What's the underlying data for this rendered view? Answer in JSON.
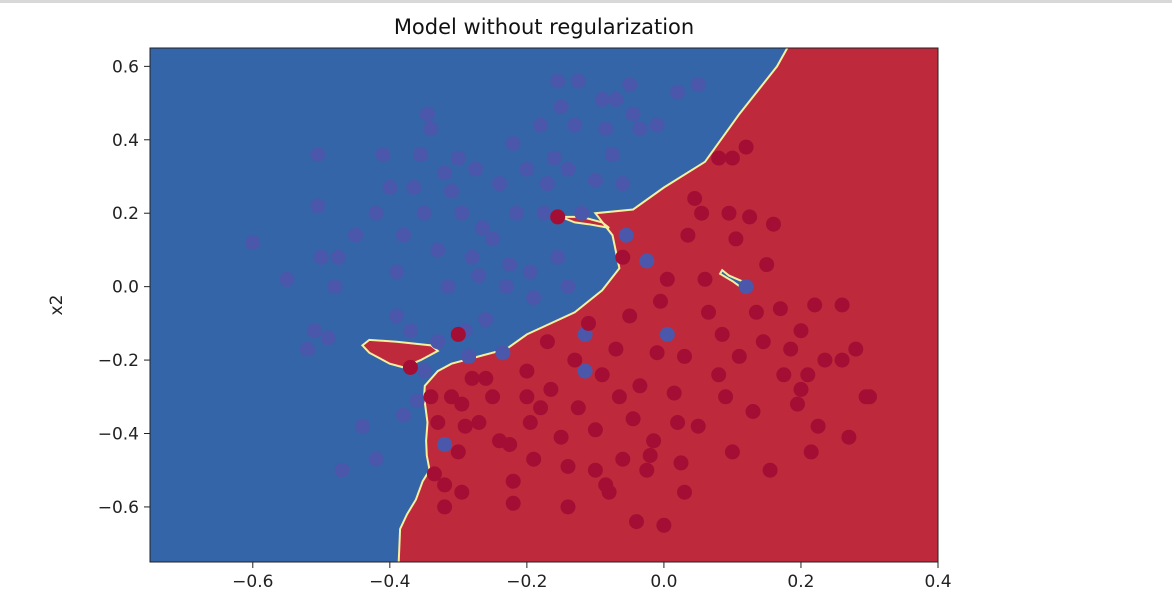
{
  "chart_data": {
    "type": "scatter",
    "title": "Model without regularization",
    "xlabel": "",
    "ylabel": "x2",
    "xlim": [
      -0.75,
      0.4
    ],
    "ylim": [
      -0.75,
      0.65
    ],
    "x_ticks": [
      -0.6,
      -0.4,
      -0.2,
      0.0,
      0.2,
      0.4
    ],
    "x_tick_labels": [
      "−0.6",
      "−0.4",
      "−0.2",
      "0.0",
      "0.2",
      "0.4"
    ],
    "y_ticks": [
      0.6,
      0.4,
      0.2,
      0.0,
      -0.2,
      -0.4,
      -0.6
    ],
    "y_tick_labels": [
      "0.6",
      "0.4",
      "0.2",
      "0.0",
      "−0.2",
      "−0.4",
      "−0.6"
    ],
    "grid": false,
    "colors": {
      "blue_region": "#3465a8",
      "red_region": "#be2a3c",
      "boundary": "#f3f0a0",
      "blue_point": "#4b57ab",
      "red_point": "#a50e34"
    },
    "decision_boundary_main": [
      [
        -0.387,
        -0.75
      ],
      [
        -0.385,
        -0.66
      ],
      [
        -0.375,
        -0.62
      ],
      [
        -0.362,
        -0.58
      ],
      [
        -0.352,
        -0.53
      ],
      [
        -0.342,
        -0.5
      ],
      [
        -0.346,
        -0.46
      ],
      [
        -0.347,
        -0.42
      ],
      [
        -0.345,
        -0.37
      ],
      [
        -0.35,
        -0.3
      ],
      [
        -0.349,
        -0.27
      ],
      [
        -0.33,
        -0.23
      ],
      [
        -0.31,
        -0.21
      ],
      [
        -0.27,
        -0.19
      ],
      [
        -0.23,
        -0.17
      ],
      [
        -0.2,
        -0.13
      ],
      [
        -0.13,
        -0.07
      ],
      [
        -0.09,
        -0.01
      ],
      [
        -0.065,
        0.05
      ],
      [
        -0.075,
        0.14
      ],
      [
        -0.1,
        0.2
      ],
      [
        -0.045,
        0.21
      ],
      [
        0.0,
        0.27
      ],
      [
        0.06,
        0.34
      ],
      [
        0.11,
        0.47
      ],
      [
        0.165,
        0.6
      ],
      [
        0.18,
        0.65
      ]
    ],
    "decision_boundary_islands": [
      [
        [
          -0.44,
          -0.16
        ],
        [
          -0.43,
          -0.145
        ],
        [
          -0.39,
          -0.15
        ],
        [
          -0.34,
          -0.16
        ],
        [
          -0.33,
          -0.175
        ],
        [
          -0.355,
          -0.2
        ],
        [
          -0.38,
          -0.22
        ],
        [
          -0.4,
          -0.21
        ],
        [
          -0.43,
          -0.18
        ]
      ],
      [
        [
          -0.15,
          0.19
        ],
        [
          -0.13,
          0.175
        ],
        [
          -0.11,
          0.17
        ],
        [
          -0.08,
          0.16
        ],
        [
          -0.09,
          0.175
        ],
        [
          -0.12,
          0.19
        ]
      ],
      [
        [
          0.085,
          0.045
        ],
        [
          0.095,
          0.03
        ],
        [
          0.12,
          0.01
        ],
        [
          0.115,
          -0.005
        ],
        [
          0.1,
          0.015
        ],
        [
          0.082,
          0.035
        ]
      ]
    ],
    "series": [
      {
        "label_class": "blue",
        "points": [
          [
            -0.6,
            0.12
          ],
          [
            -0.55,
            0.02
          ],
          [
            -0.52,
            -0.17
          ],
          [
            -0.51,
            -0.12
          ],
          [
            -0.505,
            0.36
          ],
          [
            -0.505,
            0.22
          ],
          [
            -0.5,
            0.08
          ],
          [
            -0.49,
            -0.14
          ],
          [
            -0.48,
            0.0
          ],
          [
            -0.475,
            0.08
          ],
          [
            -0.47,
            -0.5
          ],
          [
            -0.45,
            0.14
          ],
          [
            -0.44,
            -0.38
          ],
          [
            -0.42,
            0.2
          ],
          [
            -0.42,
            -0.47
          ],
          [
            -0.41,
            0.36
          ],
          [
            -0.4,
            0.27
          ],
          [
            -0.39,
            0.04
          ],
          [
            -0.39,
            -0.08
          ],
          [
            -0.38,
            0.14
          ],
          [
            -0.38,
            -0.35
          ],
          [
            -0.37,
            -0.12
          ],
          [
            -0.365,
            0.27
          ],
          [
            -0.36,
            -0.31
          ],
          [
            -0.355,
            0.36
          ],
          [
            -0.35,
            0.2
          ],
          [
            -0.35,
            -0.23
          ],
          [
            -0.345,
            0.47
          ],
          [
            -0.34,
            0.43
          ],
          [
            -0.33,
            0.1
          ],
          [
            -0.33,
            -0.15
          ],
          [
            -0.32,
            0.31
          ],
          [
            -0.315,
            0.0
          ],
          [
            -0.31,
            0.26
          ],
          [
            -0.3,
            0.35
          ],
          [
            -0.295,
            0.2
          ],
          [
            -0.29,
            -0.12
          ],
          [
            -0.285,
            -0.19
          ],
          [
            -0.28,
            0.08
          ],
          [
            -0.275,
            0.32
          ],
          [
            -0.27,
            0.03
          ],
          [
            -0.265,
            0.16
          ],
          [
            -0.26,
            -0.09
          ],
          [
            -0.25,
            0.13
          ],
          [
            -0.24,
            0.28
          ],
          [
            -0.235,
            -0.18
          ],
          [
            -0.23,
            0.0
          ],
          [
            -0.225,
            0.06
          ],
          [
            -0.22,
            0.39
          ],
          [
            -0.215,
            0.2
          ],
          [
            -0.2,
            0.32
          ],
          [
            -0.195,
            0.04
          ],
          [
            -0.19,
            -0.03
          ],
          [
            -0.18,
            0.44
          ],
          [
            -0.175,
            0.2
          ],
          [
            -0.17,
            0.28
          ],
          [
            -0.16,
            0.35
          ],
          [
            -0.155,
            0.56
          ],
          [
            -0.155,
            0.08
          ],
          [
            -0.15,
            0.49
          ],
          [
            -0.14,
            0.32
          ],
          [
            -0.14,
            0.0
          ],
          [
            -0.13,
            0.44
          ],
          [
            -0.125,
            0.56
          ],
          [
            -0.12,
            0.2
          ],
          [
            -0.115,
            -0.13
          ],
          [
            -0.1,
            0.29
          ],
          [
            -0.09,
            0.51
          ],
          [
            -0.085,
            0.43
          ],
          [
            -0.075,
            0.36
          ],
          [
            -0.07,
            0.51
          ],
          [
            -0.06,
            0.28
          ],
          [
            -0.055,
            0.14
          ],
          [
            -0.05,
            0.55
          ],
          [
            -0.045,
            0.47
          ],
          [
            -0.035,
            0.43
          ],
          [
            -0.025,
            0.07
          ],
          [
            -0.01,
            0.44
          ],
          [
            0.005,
            -0.13
          ],
          [
            0.02,
            0.53
          ],
          [
            0.05,
            0.55
          ],
          [
            0.12,
            0.0
          ],
          [
            -0.115,
            -0.23
          ],
          [
            -0.32,
            -0.43
          ]
        ]
      },
      {
        "label_class": "red",
        "points": [
          [
            -0.3,
            -0.13
          ],
          [
            -0.155,
            0.19
          ],
          [
            -0.06,
            0.08
          ],
          [
            -0.37,
            -0.22
          ],
          [
            -0.34,
            -0.3
          ],
          [
            -0.33,
            -0.37
          ],
          [
            -0.31,
            -0.3
          ],
          [
            -0.295,
            -0.32
          ],
          [
            -0.29,
            -0.38
          ],
          [
            -0.3,
            -0.45
          ],
          [
            -0.32,
            -0.54
          ],
          [
            -0.335,
            -0.51
          ],
          [
            -0.32,
            -0.6
          ],
          [
            -0.295,
            -0.56
          ],
          [
            -0.27,
            -0.37
          ],
          [
            -0.26,
            -0.25
          ],
          [
            -0.25,
            -0.3
          ],
          [
            -0.24,
            -0.42
          ],
          [
            -0.225,
            -0.43
          ],
          [
            -0.22,
            -0.53
          ],
          [
            -0.22,
            -0.59
          ],
          [
            -0.2,
            -0.23
          ],
          [
            -0.2,
            -0.3
          ],
          [
            -0.195,
            -0.37
          ],
          [
            -0.19,
            -0.47
          ],
          [
            -0.18,
            -0.33
          ],
          [
            -0.17,
            -0.15
          ],
          [
            -0.165,
            -0.28
          ],
          [
            -0.15,
            -0.41
          ],
          [
            -0.14,
            -0.49
          ],
          [
            -0.14,
            -0.6
          ],
          [
            -0.13,
            -0.2
          ],
          [
            -0.125,
            -0.33
          ],
          [
            -0.11,
            -0.1
          ],
          [
            -0.1,
            -0.39
          ],
          [
            -0.1,
            -0.5
          ],
          [
            -0.09,
            -0.24
          ],
          [
            -0.085,
            -0.54
          ],
          [
            -0.08,
            -0.56
          ],
          [
            -0.07,
            -0.17
          ],
          [
            -0.065,
            -0.3
          ],
          [
            -0.06,
            -0.47
          ],
          [
            -0.05,
            -0.08
          ],
          [
            -0.045,
            -0.36
          ],
          [
            -0.04,
            -0.64
          ],
          [
            -0.035,
            -0.27
          ],
          [
            -0.025,
            -0.5
          ],
          [
            -0.02,
            -0.46
          ],
          [
            -0.015,
            -0.42
          ],
          [
            -0.01,
            -0.18
          ],
          [
            -0.005,
            -0.04
          ],
          [
            0.0,
            -0.65
          ],
          [
            0.005,
            0.02
          ],
          [
            0.015,
            -0.29
          ],
          [
            0.02,
            -0.37
          ],
          [
            0.025,
            -0.48
          ],
          [
            0.03,
            -0.19
          ],
          [
            0.03,
            -0.56
          ],
          [
            0.035,
            0.14
          ],
          [
            0.045,
            0.24
          ],
          [
            0.05,
            -0.38
          ],
          [
            0.055,
            0.2
          ],
          [
            0.06,
            0.02
          ],
          [
            0.065,
            -0.07
          ],
          [
            0.08,
            -0.24
          ],
          [
            0.085,
            -0.13
          ],
          [
            0.095,
            0.2
          ],
          [
            0.09,
            -0.3
          ],
          [
            0.1,
            -0.45
          ],
          [
            0.105,
            0.13
          ],
          [
            0.11,
            -0.19
          ],
          [
            0.12,
            0.38
          ],
          [
            0.125,
            0.19
          ],
          [
            0.13,
            -0.34
          ],
          [
            0.135,
            -0.07
          ],
          [
            0.145,
            -0.15
          ],
          [
            0.15,
            0.06
          ],
          [
            0.155,
            -0.5
          ],
          [
            0.16,
            0.17
          ],
          [
            0.17,
            -0.06
          ],
          [
            0.175,
            -0.24
          ],
          [
            0.185,
            -0.17
          ],
          [
            0.195,
            -0.32
          ],
          [
            0.2,
            -0.28
          ],
          [
            0.2,
            -0.12
          ],
          [
            0.21,
            -0.24
          ],
          [
            0.215,
            -0.45
          ],
          [
            0.22,
            -0.05
          ],
          [
            0.225,
            -0.38
          ],
          [
            0.235,
            -0.2
          ],
          [
            0.26,
            -0.05
          ],
          [
            0.26,
            -0.2
          ],
          [
            0.27,
            -0.41
          ],
          [
            0.28,
            -0.17
          ],
          [
            0.295,
            -0.3
          ],
          [
            0.3,
            -0.3
          ],
          [
            0.1,
            0.35
          ],
          [
            0.08,
            0.35
          ],
          [
            -0.28,
            -0.25
          ]
        ]
      }
    ]
  }
}
